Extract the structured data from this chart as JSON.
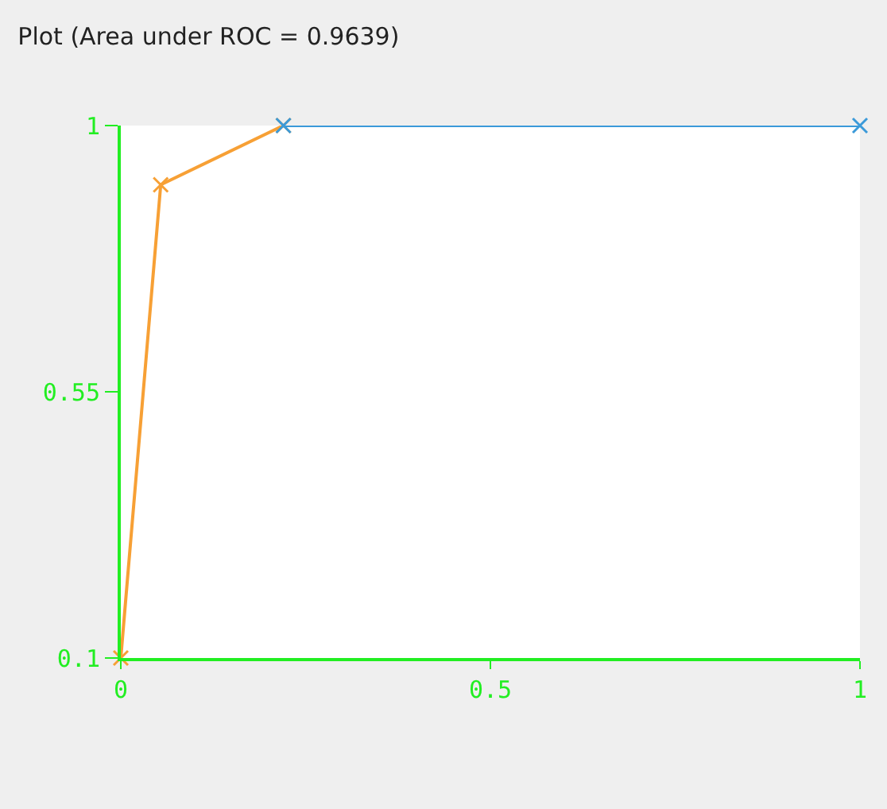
{
  "chart_data": {
    "type": "line",
    "title": "Plot (Area under ROC = 0.9639)",
    "series": [
      {
        "color": "#f7a035",
        "x": [
          0,
          0.054,
          0.22
        ],
        "values": [
          0.1,
          0.9,
          1
        ]
      },
      {
        "color": "#3b9ad9",
        "x": [
          0.22,
          1
        ],
        "values": [
          1,
          1
        ]
      }
    ],
    "xlim": [
      0,
      1
    ],
    "xticks": [
      0,
      0.5,
      1
    ],
    "ylim": [
      0.1,
      1
    ],
    "yticks": [
      0.1,
      0.55,
      1
    ],
    "marker": "cross",
    "line_style": "solid"
  }
}
